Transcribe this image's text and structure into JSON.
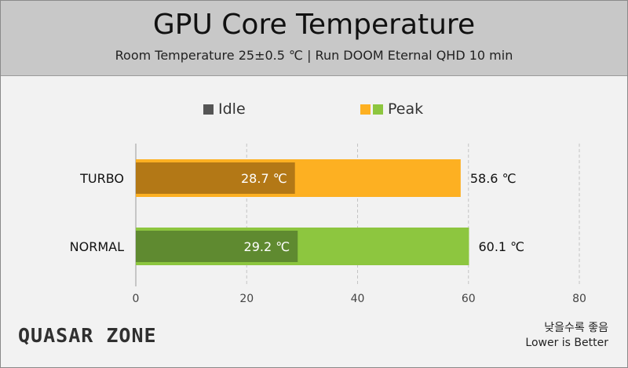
{
  "header": {
    "title": "GPU Core Temperature",
    "subtitle": "Room Temperature 25±0.5 ℃  |  Run DOOM Eternal QHD 10 min"
  },
  "legend": {
    "idle_label": "Idle",
    "peak_label": "Peak"
  },
  "footer": {
    "brand": "QUASAR ZONE",
    "note_ko": "낮을수록 좋음",
    "note_en": "Lower is Better"
  },
  "colors": {
    "idle_legend": "#555555",
    "turbo_peak": "#fdb022",
    "turbo_idle": "#b37816",
    "normal_peak": "#8dc63f",
    "normal_idle": "#5f8a30",
    "grid": "#c4c4c4"
  },
  "chart_data": {
    "type": "bar",
    "orientation": "horizontal",
    "title": "GPU Core Temperature",
    "subtitle": "Room Temperature 25±0.5 ℃  |  Run DOOM Eternal QHD 10 min",
    "categories": [
      "TURBO",
      "NORMAL"
    ],
    "series": [
      {
        "name": "Idle",
        "values": [
          28.7,
          29.2
        ],
        "labels": [
          "28.7 ℃",
          "29.2 ℃"
        ]
      },
      {
        "name": "Peak",
        "values": [
          58.6,
          60.1
        ],
        "labels": [
          "58.6 ℃",
          "60.1 ℃"
        ]
      }
    ],
    "xlim": [
      0,
      80
    ],
    "xticks": [
      0,
      20,
      40,
      60,
      80
    ],
    "grid": "vertical dashed",
    "legend_position": "top"
  }
}
